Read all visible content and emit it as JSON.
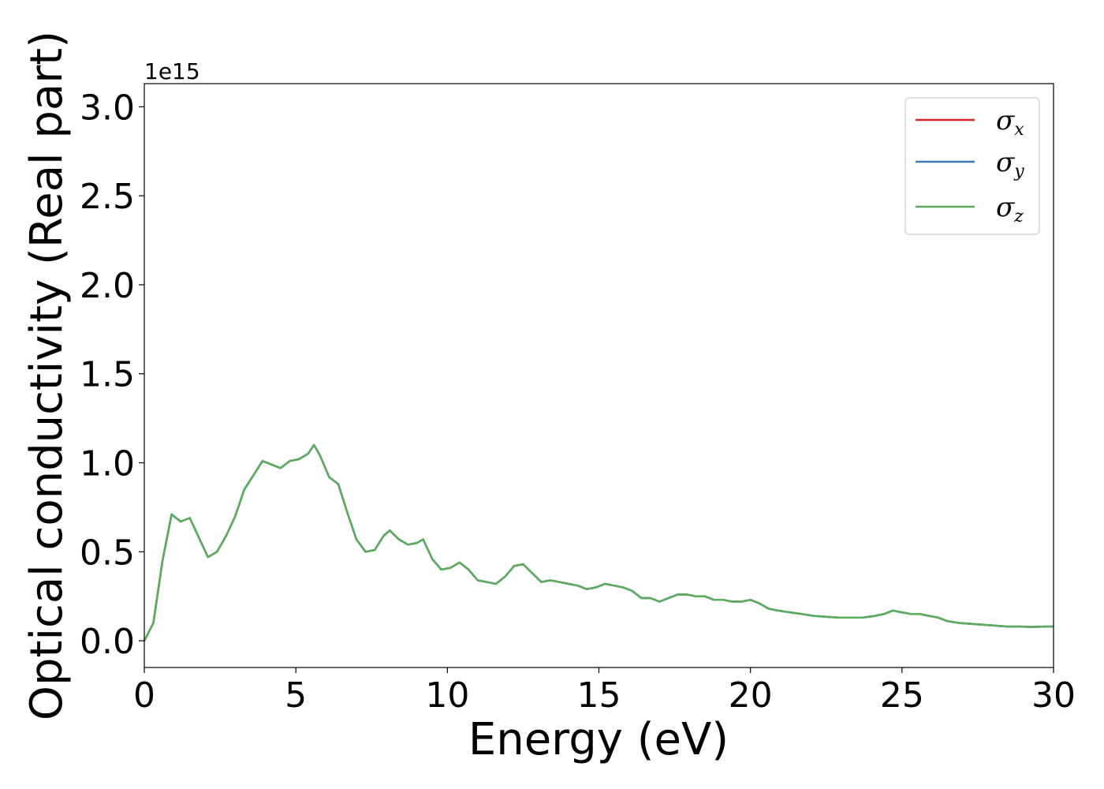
{
  "chart_data": {
    "type": "line",
    "title": "",
    "xlabel": "Energy (eV)",
    "ylabel": "Optical conductivity (Real part)",
    "y_offset_label": "1e15",
    "xlim": [
      0,
      30
    ],
    "ylim": [
      -0.15,
      3.13
    ],
    "x_ticks": [
      0,
      5,
      10,
      15,
      20,
      25,
      30
    ],
    "x_tick_labels": [
      "0",
      "5",
      "10",
      "15",
      "20",
      "25",
      "30"
    ],
    "y_ticks": [
      0.0,
      0.5,
      1.0,
      1.5,
      2.0,
      2.5,
      3.0
    ],
    "y_tick_labels": [
      "0.0",
      "0.5",
      "1.0",
      "1.5",
      "2.0",
      "2.5",
      "3.0"
    ],
    "grid": false,
    "legend_position": "top-right",
    "x": [
      0,
      0.3,
      0.6,
      0.9,
      1.2,
      1.5,
      1.8,
      2.1,
      2.4,
      2.7,
      3.0,
      3.3,
      3.6,
      3.9,
      4.2,
      4.5,
      4.8,
      5.1,
      5.4,
      5.6,
      5.8,
      6.1,
      6.4,
      6.7,
      7.0,
      7.3,
      7.6,
      7.9,
      8.1,
      8.4,
      8.7,
      9.0,
      9.2,
      9.5,
      9.8,
      10.1,
      10.4,
      10.7,
      11.0,
      11.3,
      11.6,
      11.9,
      12.2,
      12.5,
      12.8,
      13.1,
      13.4,
      13.7,
      14.0,
      14.3,
      14.6,
      14.9,
      15.2,
      15.5,
      15.8,
      16.1,
      16.4,
      16.7,
      17.0,
      17.3,
      17.6,
      17.9,
      18.2,
      18.5,
      18.8,
      19.1,
      19.4,
      19.7,
      20.0,
      20.3,
      20.6,
      20.9,
      21.3,
      21.7,
      22.1,
      22.5,
      22.9,
      23.3,
      23.7,
      24.1,
      24.4,
      24.7,
      25.0,
      25.3,
      25.6,
      25.9,
      26.2,
      26.5,
      26.9,
      27.3,
      27.7,
      28.1,
      28.5,
      28.9,
      29.3,
      29.7,
      30.0
    ],
    "series": [
      {
        "name": "σx",
        "color": "#d62728",
        "values": [
          0.0,
          0.1,
          0.45,
          0.71,
          0.67,
          0.69,
          0.58,
          0.47,
          0.5,
          0.59,
          0.7,
          0.85,
          0.93,
          1.01,
          0.99,
          0.97,
          1.01,
          1.02,
          1.05,
          1.1,
          1.04,
          0.92,
          0.88,
          0.72,
          0.57,
          0.5,
          0.51,
          0.59,
          0.62,
          0.57,
          0.54,
          0.55,
          0.57,
          0.46,
          0.4,
          0.41,
          0.44,
          0.4,
          0.34,
          0.33,
          0.32,
          0.36,
          0.42,
          0.43,
          0.38,
          0.33,
          0.34,
          0.33,
          0.32,
          0.31,
          0.29,
          0.3,
          0.32,
          0.31,
          0.3,
          0.28,
          0.24,
          0.24,
          0.22,
          0.24,
          0.26,
          0.26,
          0.25,
          0.25,
          0.23,
          0.23,
          0.22,
          0.22,
          0.23,
          0.21,
          0.18,
          0.17,
          0.16,
          0.15,
          0.14,
          0.135,
          0.13,
          0.13,
          0.13,
          0.14,
          0.15,
          0.17,
          0.16,
          0.15,
          0.15,
          0.14,
          0.13,
          0.11,
          0.1,
          0.095,
          0.09,
          0.085,
          0.08,
          0.08,
          0.078,
          0.08,
          0.08
        ]
      },
      {
        "name": "σy",
        "color": "#3d7ab5",
        "values": [
          0.0,
          0.1,
          0.45,
          0.71,
          0.67,
          0.69,
          0.58,
          0.47,
          0.5,
          0.59,
          0.7,
          0.85,
          0.93,
          1.01,
          0.99,
          0.97,
          1.01,
          1.02,
          1.05,
          1.1,
          1.04,
          0.92,
          0.88,
          0.72,
          0.57,
          0.5,
          0.51,
          0.59,
          0.62,
          0.57,
          0.54,
          0.55,
          0.57,
          0.46,
          0.4,
          0.41,
          0.44,
          0.4,
          0.34,
          0.33,
          0.32,
          0.36,
          0.42,
          0.43,
          0.38,
          0.33,
          0.34,
          0.33,
          0.32,
          0.31,
          0.29,
          0.3,
          0.32,
          0.31,
          0.3,
          0.28,
          0.24,
          0.24,
          0.22,
          0.24,
          0.26,
          0.26,
          0.25,
          0.25,
          0.23,
          0.23,
          0.22,
          0.22,
          0.23,
          0.21,
          0.18,
          0.17,
          0.16,
          0.15,
          0.14,
          0.135,
          0.13,
          0.13,
          0.13,
          0.14,
          0.15,
          0.17,
          0.16,
          0.15,
          0.15,
          0.14,
          0.13,
          0.11,
          0.1,
          0.095,
          0.09,
          0.085,
          0.08,
          0.08,
          0.078,
          0.08,
          0.08
        ]
      },
      {
        "name": "σz",
        "color": "#5aad5a",
        "values": [
          0.0,
          0.1,
          0.45,
          0.71,
          0.67,
          0.69,
          0.58,
          0.47,
          0.5,
          0.59,
          0.7,
          0.85,
          0.93,
          1.01,
          0.99,
          0.97,
          1.01,
          1.02,
          1.05,
          1.1,
          1.04,
          0.92,
          0.88,
          0.72,
          0.57,
          0.5,
          0.51,
          0.59,
          0.62,
          0.57,
          0.54,
          0.55,
          0.57,
          0.46,
          0.4,
          0.41,
          0.44,
          0.4,
          0.34,
          0.33,
          0.32,
          0.36,
          0.42,
          0.43,
          0.38,
          0.33,
          0.34,
          0.33,
          0.32,
          0.31,
          0.29,
          0.3,
          0.32,
          0.31,
          0.3,
          0.28,
          0.24,
          0.24,
          0.22,
          0.24,
          0.26,
          0.26,
          0.25,
          0.25,
          0.23,
          0.23,
          0.22,
          0.22,
          0.23,
          0.21,
          0.18,
          0.17,
          0.16,
          0.15,
          0.14,
          0.135,
          0.13,
          0.13,
          0.13,
          0.14,
          0.15,
          0.17,
          0.16,
          0.15,
          0.15,
          0.14,
          0.13,
          0.11,
          0.1,
          0.095,
          0.09,
          0.085,
          0.08,
          0.08,
          0.078,
          0.08,
          0.08
        ]
      }
    ],
    "legend": [
      {
        "symbol": "σ",
        "sub": "x"
      },
      {
        "symbol": "σ",
        "sub": "y"
      },
      {
        "symbol": "σ",
        "sub": "z"
      }
    ]
  }
}
